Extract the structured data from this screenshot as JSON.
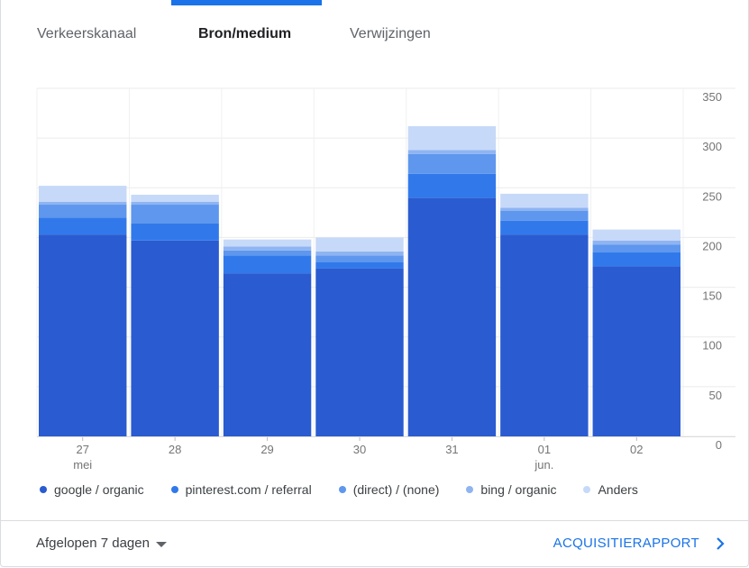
{
  "tabs": [
    {
      "label": "Verkeerskanaal"
    },
    {
      "label": "Bron/medium"
    },
    {
      "label": "Verwijzingen"
    }
  ],
  "footer": {
    "date_range": "Afgelopen 7 dagen",
    "report_link": "ACQUISITIERAPPORT"
  },
  "colors": {
    "google / organic": "#2a5bd0",
    "pinterest.com / referral": "#3179eb",
    "(direct) / (none)": "#5e97ed",
    "bing / organic": "#8fb4f2",
    "Anders": "#c6d9f8",
    "accent": "#1a73e8"
  },
  "chart_data": {
    "type": "bar",
    "stacked": true,
    "categories": [
      "27",
      "28",
      "29",
      "30",
      "31",
      "01",
      "02"
    ],
    "category_sublabels": [
      "mei",
      "",
      "",
      "",
      "",
      "jun.",
      ""
    ],
    "y_ticks": [
      0,
      50,
      100,
      150,
      200,
      250,
      300,
      350
    ],
    "ylim": [
      0,
      350
    ],
    "y_axis_position": "right",
    "grid": true,
    "legend_position": "bottom",
    "series": [
      {
        "name": "google / organic",
        "values": [
          203,
          197,
          164,
          169,
          240,
          203,
          171
        ]
      },
      {
        "name": "pinterest.com / referral",
        "values": [
          17,
          17,
          18,
          6,
          24,
          14,
          14
        ]
      },
      {
        "name": "(direct) / (none)",
        "values": [
          13,
          19,
          5,
          7,
          20,
          10,
          8
        ]
      },
      {
        "name": "bing / organic",
        "values": [
          3,
          3,
          4,
          4,
          4,
          3,
          4
        ]
      },
      {
        "name": "Anders",
        "values": [
          16,
          7,
          7,
          14,
          24,
          14,
          11
        ]
      }
    ]
  }
}
